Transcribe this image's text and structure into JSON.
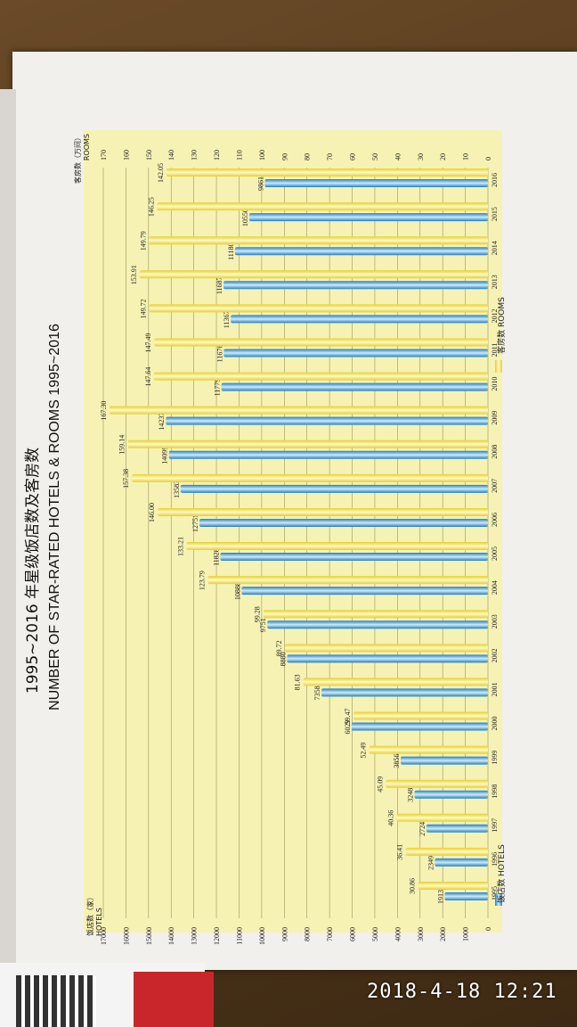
{
  "photo": {
    "timestamp": "2018-4-18 12:21"
  },
  "chart_data": {
    "type": "bar",
    "title": "1995~2016 年星级饭店数及客房数",
    "subtitle": "NUMBER OF STAR-RATED HOTELS & ROOMS 1995~2016",
    "categories": [
      "1995",
      "1996",
      "1997",
      "1998",
      "1999",
      "2000",
      "2001",
      "2002",
      "2003",
      "2004",
      "2005",
      "2006",
      "2007",
      "2008",
      "2009",
      "2010",
      "2011",
      "2012",
      "2013",
      "2014",
      "2015",
      "2016"
    ],
    "series": [
      {
        "name": "饭店数 HOTELS",
        "axis": "left",
        "color": "#3aa0d8",
        "values": [
          1913,
          2349,
          2724,
          3248,
          3856,
          6029,
          7358,
          8880,
          9751,
          10888,
          11828,
          12751,
          13583,
          14099,
          14237,
          11779,
          11676,
          11367,
          11687,
          11180,
          10550,
          9861
        ],
        "labels": [
          "1913",
          "2349",
          "2724",
          "3248",
          "3856",
          "6029",
          "7358",
          "8880",
          "9751",
          "10888",
          "11828",
          "12751",
          "13583",
          "14099",
          "14237",
          "11779",
          "11676",
          "11367",
          "11687",
          "11180",
          "10550",
          "9861"
        ]
      },
      {
        "name": "客房数 ROOMS",
        "axis": "right",
        "color": "#f2e15a",
        "values": [
          30.86,
          36.41,
          40.36,
          45.09,
          52.49,
          59.47,
          81.63,
          89.72,
          99.28,
          123.79,
          133.21,
          146.0,
          157.38,
          159.14,
          167.3,
          147.64,
          147.49,
          149.72,
          153.91,
          149.79,
          146.25,
          142.05
        ],
        "labels": [
          "30.86",
          "36.41",
          "40.36",
          "45.09",
          "52.49",
          "59.47",
          "81.63",
          "89.72",
          "99.28",
          "123.79",
          "133.21",
          "146.00",
          "157.38",
          "159.14",
          "167.30",
          "147.64",
          "147.49",
          "149.72",
          "153.91",
          "149.79",
          "146.25",
          "142.05"
        ]
      }
    ],
    "left_axis": {
      "label_cn": "饭店数（家）",
      "label_en": "HOTELS",
      "range": [
        0,
        17000
      ],
      "ticks": [
        "0",
        "1000",
        "2000",
        "3000",
        "4000",
        "5000",
        "6000",
        "7000",
        "8000",
        "9000",
        "10000",
        "11000",
        "12000",
        "13000",
        "14000",
        "15000",
        "16000",
        "17000"
      ]
    },
    "right_axis": {
      "label_cn": "客房数（万间）",
      "label_en": "ROOMS",
      "range": [
        0,
        170
      ],
      "ticks": [
        "0",
        "10",
        "20",
        "30",
        "40",
        "50",
        "60",
        "70",
        "80",
        "90",
        "100",
        "110",
        "120",
        "130",
        "140",
        "150",
        "160",
        "170"
      ]
    },
    "legend": {
      "hotels": "饭店数 HOTELS",
      "rooms": "客房数 ROOMS"
    },
    "grid": true
  }
}
